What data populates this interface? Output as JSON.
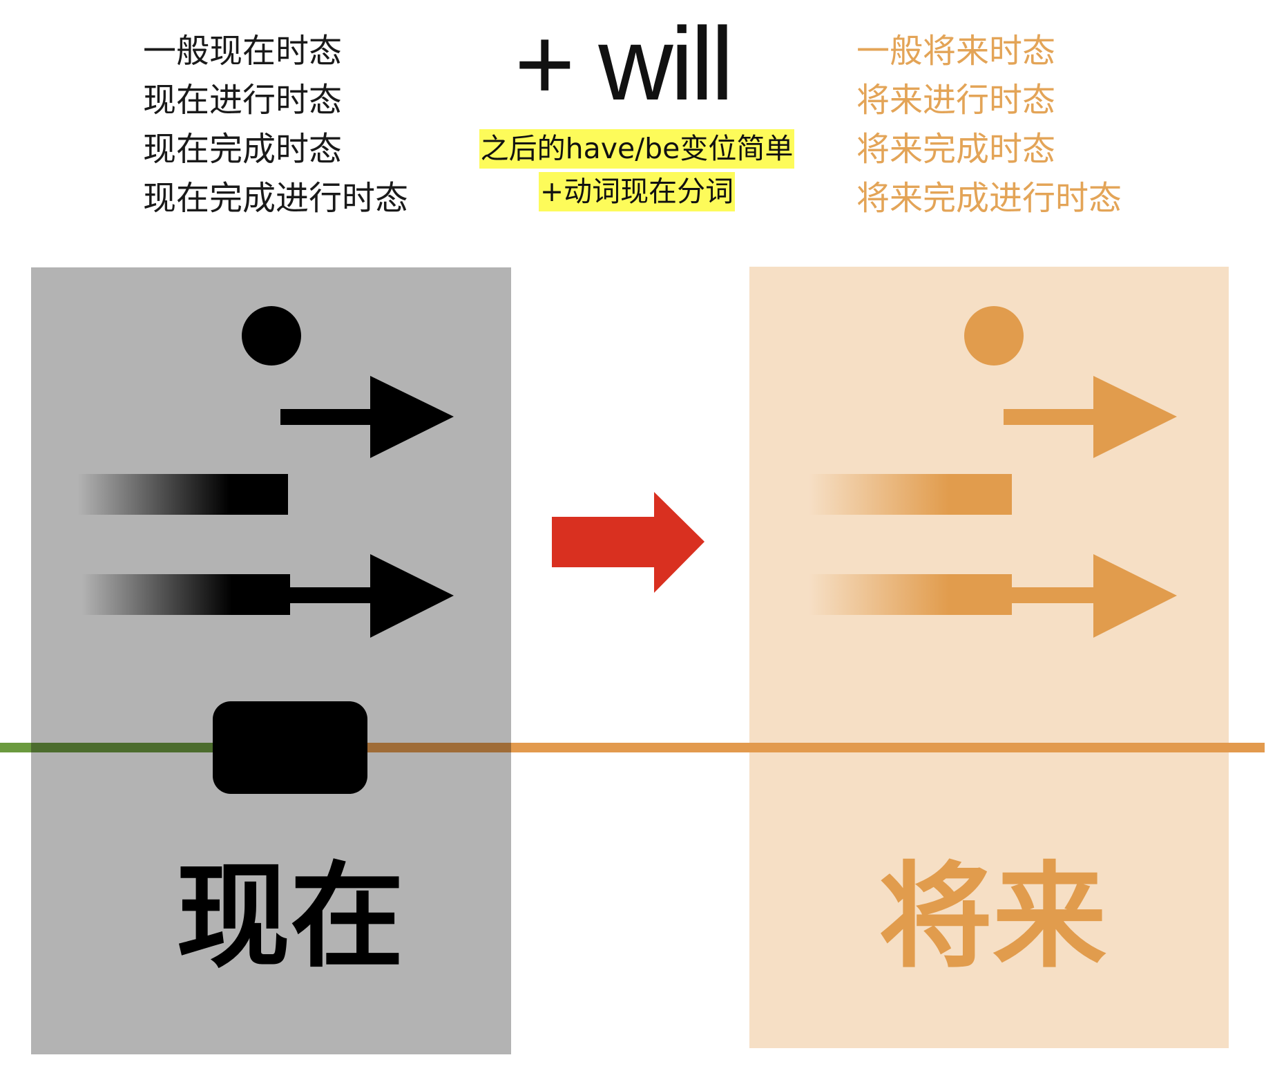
{
  "present_tenses": {
    "items": [
      "一般现在时态",
      "现在进行时态",
      "现在完成时态",
      "现在完成进行时态"
    ]
  },
  "operator": {
    "text": "+ will"
  },
  "note": {
    "lines": [
      "之后的have/be变位简单",
      "+动词现在分词"
    ]
  },
  "future_tenses": {
    "items": [
      "一般将来时态",
      "将来进行时态",
      "将来完成时态",
      "将来完成进行时态"
    ]
  },
  "present_panel": {
    "label": "现在",
    "symbols": [
      "dot-icon",
      "arrow-icon",
      "fading-bar-icon",
      "fading-bar-arrow-icon"
    ]
  },
  "future_panel": {
    "label": "将来",
    "symbols": [
      "dot-icon",
      "arrow-icon",
      "fading-bar-icon",
      "fading-bar-arrow-icon"
    ]
  },
  "transition": {
    "icon": "right-arrow-icon"
  },
  "timeline": {
    "marker_icon": "now-marker-icon"
  },
  "colors": {
    "present_ink": "#000000",
    "future_ink": "#E19C4D",
    "future_text": "#E3A457",
    "present_panel": "#B3B3B3",
    "future_panel": "#F6DFC5",
    "transition": "#D93020",
    "highlight": "#FDFB5A",
    "timeline_past": "#6B9A3F",
    "timeline_future": "#E29A4E",
    "text": "#1A1A1A"
  }
}
